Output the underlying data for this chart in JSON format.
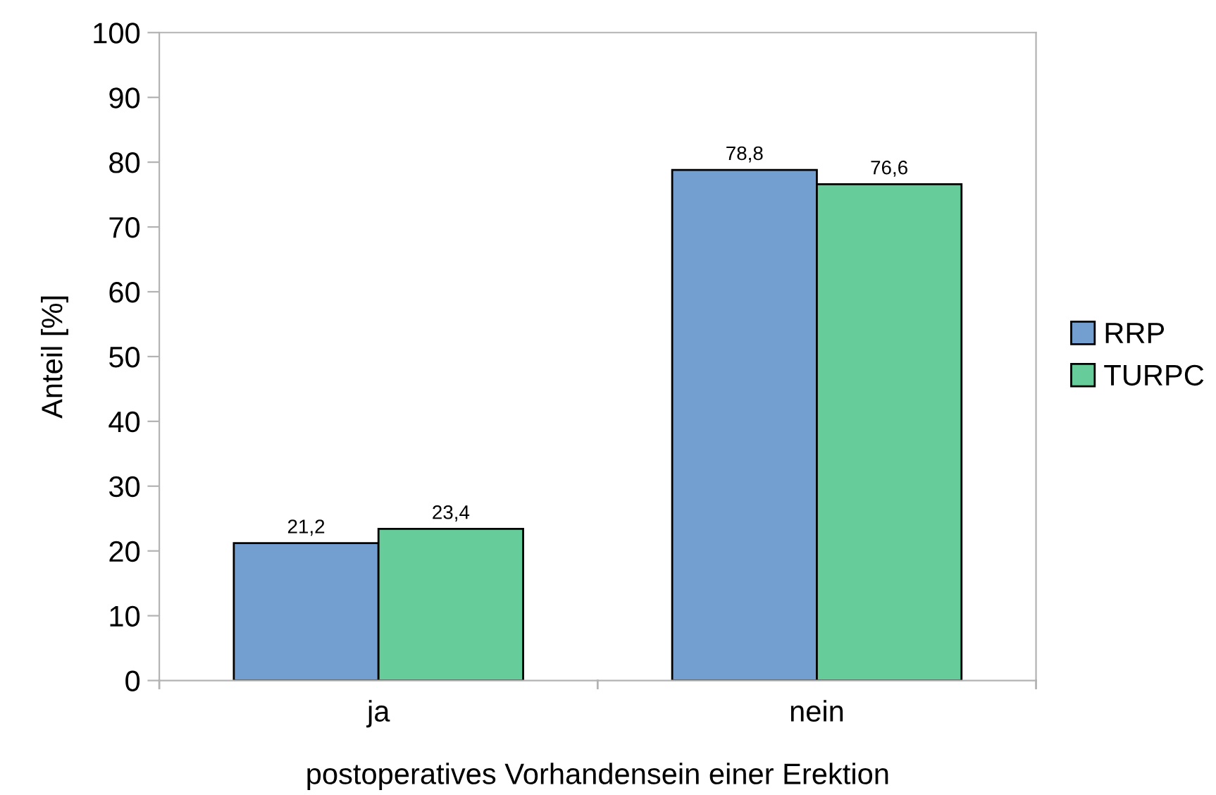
{
  "chart_data": {
    "type": "bar",
    "xlabel": "postoperatives Vorhandensein einer Erektion",
    "ylabel": "Anteil [%]",
    "categories": [
      "ja",
      "nein"
    ],
    "series": [
      {
        "name": "RRP",
        "color": "#729fcf",
        "values": [
          21.2,
          78.8
        ],
        "value_labels": [
          "21,2",
          "78,8"
        ]
      },
      {
        "name": "TURPC",
        "color": "#66cc99",
        "values": [
          23.4,
          76.6
        ],
        "value_labels": [
          "23,4",
          "76,6"
        ]
      }
    ],
    "ylim": [
      0,
      100
    ],
    "yticks": [
      0,
      10,
      20,
      30,
      40,
      50,
      60,
      70,
      80,
      90,
      100
    ],
    "grid": false,
    "legend": "right"
  }
}
